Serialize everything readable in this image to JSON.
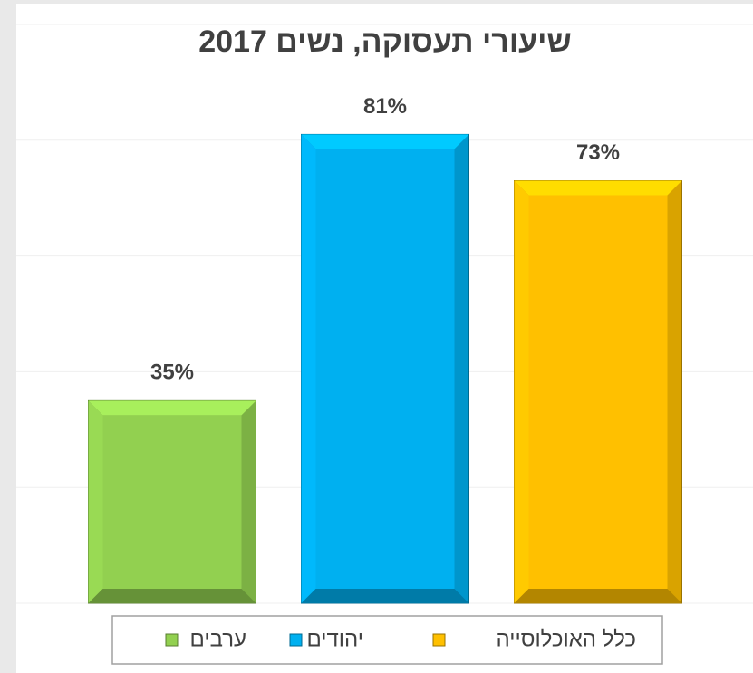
{
  "chart_data": {
    "type": "bar",
    "title": "שיעורי תעסוקה, נשים 2017",
    "series": [
      {
        "name": "ערבים",
        "color": "#92d050",
        "values": [
          35
        ],
        "value_labels": [
          "35%"
        ]
      },
      {
        "name": "יהודים",
        "color": "#00b0f0",
        "values": [
          81
        ],
        "value_labels": [
          "81%"
        ]
      },
      {
        "name": "כלל האוכלוסייה",
        "color": "#ffc000",
        "values": [
          73
        ],
        "value_labels": [
          "73%"
        ]
      }
    ],
    "ylim": [
      0,
      100
    ],
    "yticks": [
      0,
      20,
      40,
      60,
      80,
      100
    ],
    "grid": true,
    "legend": "bottom"
  }
}
